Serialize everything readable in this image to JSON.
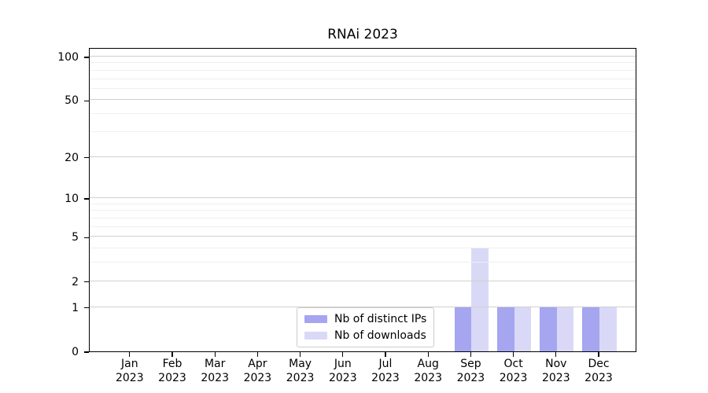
{
  "chart_data": {
    "type": "bar",
    "title": "RNAi 2023",
    "categories": [
      "Jan",
      "Feb",
      "Mar",
      "Apr",
      "May",
      "Jun",
      "Jul",
      "Aug",
      "Sep",
      "Oct",
      "Nov",
      "Dec"
    ],
    "year_label": "2023",
    "series": [
      {
        "name": "Nb of distinct IPs",
        "color": "#a5a5f0",
        "values": [
          0,
          0,
          0,
          0,
          0,
          0,
          0,
          0,
          1,
          1,
          1,
          1
        ]
      },
      {
        "name": "Nb of downloads",
        "color": "#d9d9f7",
        "values": [
          0,
          0,
          0,
          0,
          0,
          0,
          0,
          0,
          4,
          1,
          1,
          1
        ]
      }
    ],
    "yscale": "log1p",
    "ylim": [
      0,
      111.7
    ],
    "y_major_ticks": [
      0,
      1,
      2,
      5,
      10,
      20,
      50,
      100
    ],
    "y_minor_ticks": [
      3,
      4,
      6,
      7,
      8,
      9,
      30,
      40,
      60,
      70,
      80,
      90
    ],
    "grid": {
      "axis": "y",
      "major_color": "#d0d0d0",
      "minor_color": "#efefef"
    },
    "legend_position": "lower center",
    "bar_layout": "paired, series side by side per month",
    "text_color": "#000000",
    "spine_color": "#000000"
  }
}
